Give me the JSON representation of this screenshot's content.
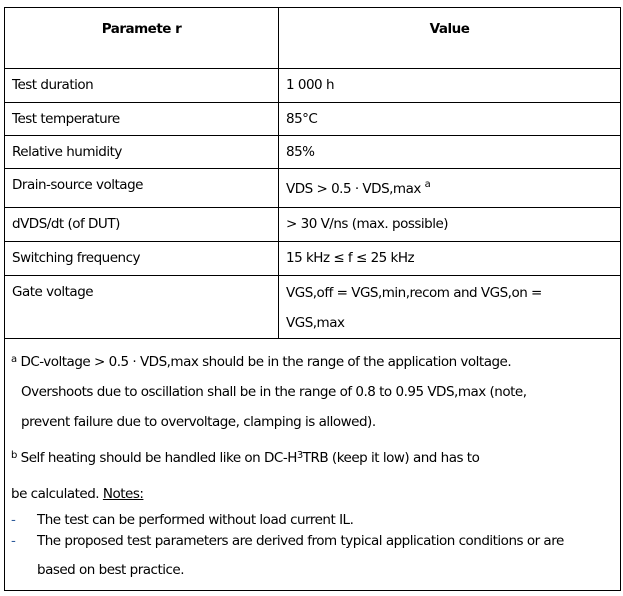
{
  "table": {
    "headers": [
      "Paramete r",
      "Value"
    ],
    "rows": [
      {
        "parameter": "Test duration",
        "value": "1 000 h"
      },
      {
        "parameter": "Test temperature",
        "value": "85°C"
      },
      {
        "parameter": "Relative humidity",
        "value": "85%"
      },
      {
        "parameter": "Drain-source voltage",
        "value": "VDS > 0.5 · VDS,max",
        "value_sup": "a"
      },
      {
        "parameter": "dVDS/dt (of DUT)",
        "value": "> 30 V/ns (max. possible)"
      },
      {
        "parameter": "Switching frequency",
        "value": "15 kHz ≤ f ≤ 25 kHz"
      },
      {
        "parameter": "Gate voltage",
        "value": "VGS,off = VGS,min,recom and VGS,on = VGS,max"
      }
    ]
  },
  "footnotes": {
    "a_mark": "a",
    "a_text": "DC-voltage > 0.5 · VDS,max should be in the range of the application voltage.",
    "a_text2": "Overshoots due to oscillation shall be in the range of 0.8 to 0.95 VDS,max (note,",
    "a_text3": "prevent failure due to overvoltage, clamping is allowed).",
    "b_mark": "b",
    "b_text_pre": "Self heating should be handled like on DC-H",
    "b_text_sup": "3",
    "b_text_post": "TRB (keep it low) and has to",
    "b_text2": "be calculated.",
    "notes_label": "Notes:",
    "notes": [
      "The test can be performed without load current IL.",
      "The proposed test parameters are derived from typical application conditions or are based on best practice."
    ],
    "bullet": "-"
  }
}
